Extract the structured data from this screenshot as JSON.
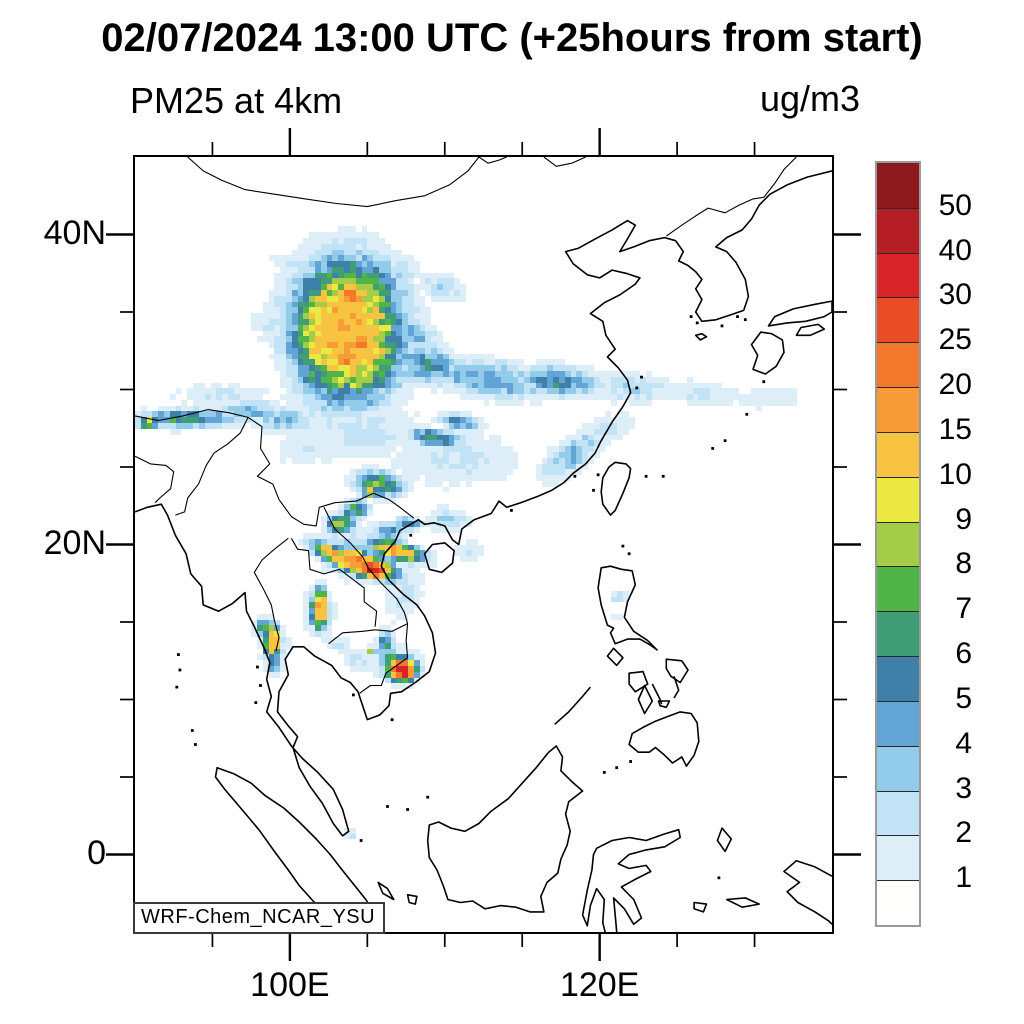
{
  "title": "02/07/2024 13:00 UTC (+25hours from start)",
  "plot": {
    "variable_label": "PM25 at 4km",
    "units_label": "ug/m3",
    "watermark": "WRF-Chem_NCAR_YSU"
  },
  "axes": {
    "lon_min": 90,
    "lon_max": 135,
    "lat_min": -5,
    "lat_max": 45,
    "tick_interval_deg": 5,
    "x_major_ticks": [
      {
        "value": 100,
        "label": "100E"
      },
      {
        "value": 120,
        "label": "120E"
      }
    ],
    "y_major_ticks": [
      {
        "value": 0,
        "label": "0"
      },
      {
        "value": 20,
        "label": "20N"
      },
      {
        "value": 40,
        "label": "40N"
      }
    ]
  },
  "colorbar": {
    "tick_labels": [
      "50",
      "40",
      "30",
      "25",
      "20",
      "15",
      "10",
      "9",
      "8",
      "7",
      "6",
      "5",
      "4",
      "3",
      "2",
      "1"
    ],
    "cell_colors_top_to_bottom": [
      "#8e191d",
      "#b51e24",
      "#d82329",
      "#e94d25",
      "#f3782b",
      "#f79c37",
      "#f8c341",
      "#ebe842",
      "#a5cc47",
      "#4fb547",
      "#3f9e77",
      "#3e80a8",
      "#62a4d6",
      "#93cbeb",
      "#c1e3f5",
      "#ddeef8",
      "#fffffe"
    ]
  },
  "chart_data": {
    "type": "heatmap",
    "title": "02/07/2024 13:00 UTC (+25hours from start)",
    "variable": "PM25 at 4km",
    "units": "ug/m3",
    "model_label": "WRF-Chem_NCAR_YSU",
    "lon_range": [
      90,
      135
    ],
    "lat_range": [
      -5,
      45
    ],
    "color_levels_ascending": [
      1,
      2,
      3,
      4,
      5,
      6,
      7,
      8,
      9,
      10,
      15,
      20,
      25,
      30,
      40,
      50
    ],
    "plume_fields": [
      "center_lon",
      "center_lat",
      "sigma_lon_deg",
      "sigma_lat_deg",
      "rotation_deg",
      "peak_ugm3"
    ],
    "plumes": [
      [
        103.7,
        33.7,
        3.1,
        4.0,
        0,
        17
      ],
      [
        103.9,
        36.0,
        0.9,
        0.8,
        0,
        24
      ],
      [
        104.6,
        33.0,
        0.8,
        0.7,
        0,
        24
      ],
      [
        103.5,
        31.8,
        0.6,
        0.5,
        0,
        21
      ],
      [
        103.9,
        37.8,
        1.1,
        0.9,
        0,
        6.5
      ],
      [
        104.9,
        38.4,
        1.2,
        0.7,
        0,
        3.6
      ],
      [
        100.6,
        37.9,
        2.2,
        0.5,
        -20,
        2.6
      ],
      [
        101.8,
        36.8,
        1.6,
        0.5,
        -15,
        3.0
      ],
      [
        100.3,
        35.3,
        1.7,
        1.4,
        0,
        3.2
      ],
      [
        98.6,
        34.4,
        1.6,
        1.0,
        10,
        2.0
      ],
      [
        99.8,
        33.6,
        2.2,
        0.8,
        10,
        2.2
      ],
      [
        106.8,
        37.4,
        1.4,
        1.2,
        0,
        3.4
      ],
      [
        109.8,
        36.6,
        1.8,
        1.0,
        -20,
        2.6
      ],
      [
        107.5,
        33.8,
        2.3,
        1.0,
        -25,
        4.5
      ],
      [
        108.8,
        31.6,
        2.7,
        1.3,
        -12,
        4.8
      ],
      [
        112.8,
        30.7,
        3.4,
        1.2,
        -8,
        5.2
      ],
      [
        117.2,
        30.5,
        2.8,
        1.0,
        -5,
        5.4
      ],
      [
        122.0,
        30.1,
        2.7,
        1.0,
        -4,
        3.2
      ],
      [
        126.5,
        29.7,
        2.8,
        0.9,
        -3,
        2.4
      ],
      [
        131.0,
        29.4,
        2.6,
        0.9,
        -2,
        1.8
      ],
      [
        109.4,
        26.9,
        1.8,
        0.55,
        -8,
        7.2
      ],
      [
        111.0,
        27.9,
        1.3,
        0.5,
        -10,
        6.4
      ],
      [
        104.5,
        27.5,
        4.2,
        2.0,
        0,
        2.6
      ],
      [
        110.5,
        25.5,
        4.2,
        1.9,
        0,
        2.4
      ],
      [
        105.8,
        23.9,
        1.6,
        0.8,
        -10,
        7.5
      ],
      [
        105.2,
        23.4,
        0.5,
        0.4,
        0,
        9.5
      ],
      [
        93.5,
        28.1,
        3.2,
        0.6,
        0,
        6.8
      ],
      [
        90.9,
        27.9,
        0.7,
        0.4,
        0,
        9.6
      ],
      [
        97.4,
        28.6,
        2.2,
        0.8,
        0,
        4.2
      ],
      [
        95.5,
        29.6,
        3.2,
        0.9,
        0,
        2.2
      ],
      [
        99.6,
        28.1,
        2.0,
        0.8,
        0,
        4.0
      ],
      [
        101.2,
        26.2,
        2.6,
        1.3,
        0,
        2.0
      ],
      [
        104.7,
        18.7,
        1.9,
        0.6,
        -18,
        26
      ],
      [
        105.4,
        18.35,
        0.7,
        0.4,
        -18,
        46
      ],
      [
        106.9,
        19.6,
        1.6,
        0.5,
        -14,
        16
      ],
      [
        102.8,
        19.4,
        1.4,
        0.5,
        -24,
        14
      ],
      [
        103.3,
        21.3,
        0.9,
        0.6,
        0,
        8.4
      ],
      [
        104.3,
        22.3,
        0.8,
        0.55,
        0,
        7.0
      ],
      [
        103.7,
        21.9,
        0.35,
        0.25,
        0,
        9.6
      ],
      [
        106.4,
        20.9,
        1.0,
        0.5,
        0,
        5.4
      ],
      [
        107.6,
        21.3,
        0.9,
        0.45,
        0,
        5.2
      ],
      [
        104.6,
        19.4,
        3.0,
        1.8,
        -10,
        3.4
      ],
      [
        107.4,
        16.8,
        1.2,
        2.0,
        -20,
        2.4
      ],
      [
        101.9,
        15.9,
        0.5,
        1.2,
        0,
        16
      ],
      [
        101.9,
        15.6,
        1.1,
        1.8,
        0,
        3.0
      ],
      [
        98.85,
        13.7,
        0.5,
        1.05,
        0,
        15
      ],
      [
        98.3,
        14.6,
        0.5,
        0.6,
        0,
        8.0
      ],
      [
        98.95,
        12.5,
        0.45,
        0.75,
        0,
        7.0
      ],
      [
        99.0,
        13.4,
        1.0,
        1.6,
        0,
        2.6
      ],
      [
        107.2,
        11.95,
        0.85,
        0.65,
        0,
        28
      ],
      [
        107.45,
        11.8,
        0.42,
        0.34,
        0,
        46
      ],
      [
        106.5,
        12.6,
        0.75,
        0.6,
        0,
        7.2
      ],
      [
        106.2,
        13.6,
        0.55,
        0.85,
        0,
        6.0
      ],
      [
        105.3,
        13.15,
        0.3,
        0.22,
        0,
        9.4
      ],
      [
        106.9,
        12.3,
        1.8,
        1.25,
        0,
        3.2
      ],
      [
        104.6,
        12.6,
        1.3,
        0.85,
        0,
        2.3
      ],
      [
        103.2,
        13.6,
        0.9,
        0.55,
        0,
        2.1
      ],
      [
        111.6,
        19.6,
        1.1,
        0.8,
        0,
        2.2
      ],
      [
        110.2,
        21.6,
        1.6,
        0.8,
        0,
        3.0
      ],
      [
        118.3,
        25.8,
        2.3,
        1.0,
        35,
        4.4
      ],
      [
        120.3,
        27.3,
        2.2,
        1.0,
        25,
        2.6
      ],
      [
        121.3,
        16.6,
        0.6,
        0.4,
        0,
        3.6
      ],
      [
        121.1,
        15.3,
        0.5,
        0.35,
        0,
        2.4
      ],
      [
        103.95,
        1.2,
        0.5,
        0.4,
        0,
        2.6
      ],
      [
        105.4,
        -4.6,
        0.5,
        0.45,
        0,
        2.6
      ]
    ]
  }
}
